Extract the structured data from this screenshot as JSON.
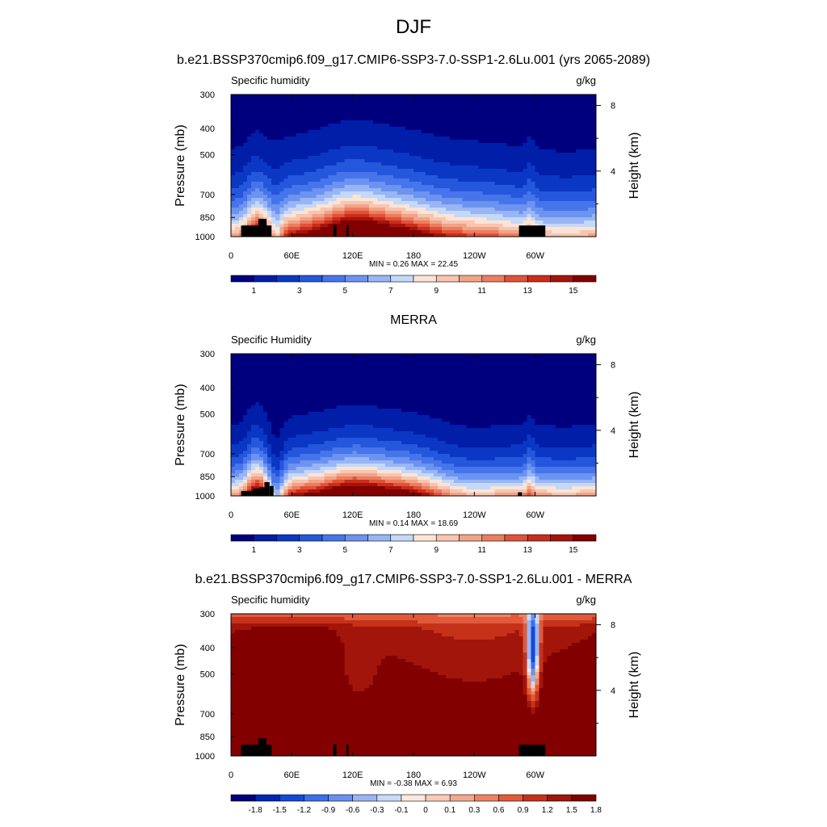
{
  "figure": {
    "title": "DJF"
  },
  "colormaps": {
    "abs": [
      "#00007f",
      "#001ea8",
      "#0a38c4",
      "#2557dd",
      "#4675eb",
      "#6c93f0",
      "#98b5f4",
      "#c4d8f8",
      "#fbe4d6",
      "#f7c5b0",
      "#f2a387",
      "#ec7d5f",
      "#e0523a",
      "#cb2d1b",
      "#a5140b",
      "#820000"
    ],
    "diff": [
      "#00007f",
      "#0027b3",
      "#124ad6",
      "#3a6fe8",
      "#6890ef",
      "#9ab4f4",
      "#c9daf8",
      "#fde8dc",
      "#f9ccb6",
      "#f3a98d",
      "#ec8363",
      "#e05a3b",
      "#c63119",
      "#a1150a",
      "#820000"
    ]
  },
  "chart_data": [
    {
      "type": "heatmap",
      "title": "b.e21.BSSP370cmip6.f09_g17.CMIP6-SSP3-7.0-SSP1-2.6Lu.001 (yrs 2065-2089)",
      "left_label": "Specific humidity",
      "right_label": "g/kg",
      "ylabel": "Pressure (mb)",
      "ylabel_right": "Height (km)",
      "x_ticks": [
        "0",
        "60E",
        "120E",
        "180",
        "120W",
        "60W"
      ],
      "x_tick_lon": [
        0,
        60,
        120,
        180,
        240,
        300
      ],
      "xlim": [
        0,
        360
      ],
      "y_ticks": [
        "300",
        "400",
        "500",
        "700",
        "850",
        "1000"
      ],
      "y_tick_values": [
        300,
        400,
        500,
        700,
        850,
        1000
      ],
      "ylim": [
        300,
        1000
      ],
      "y_scale": "log",
      "right_ticks": [
        "8",
        "4"
      ],
      "right_tick_values": [
        8,
        4
      ],
      "stats": "MIN =   0.26  MAX =   22.45",
      "colorbar_labels": [
        "1",
        "3",
        "5",
        "7",
        "9",
        "11",
        "13",
        "15"
      ],
      "colormap": "abs",
      "field": "model"
    },
    {
      "type": "heatmap",
      "title": "MERRA",
      "left_label": "Specific Humidity",
      "right_label": "g/kg",
      "ylabel": "Pressure (mb)",
      "ylabel_right": "Height (km)",
      "x_ticks": [
        "0",
        "60E",
        "120E",
        "180",
        "120W",
        "60W"
      ],
      "x_tick_lon": [
        0,
        60,
        120,
        180,
        240,
        300
      ],
      "xlim": [
        0,
        360
      ],
      "y_ticks": [
        "300",
        "400",
        "500",
        "700",
        "850",
        "1000"
      ],
      "y_tick_values": [
        300,
        400,
        500,
        700,
        850,
        1000
      ],
      "ylim": [
        300,
        1000
      ],
      "y_scale": "log",
      "right_ticks": [
        "8",
        "4"
      ],
      "right_tick_values": [
        8,
        4
      ],
      "stats": "MIN =   0.14  MAX =   18.69",
      "colorbar_labels": [
        "1",
        "3",
        "5",
        "7",
        "9",
        "11",
        "13",
        "15"
      ],
      "colormap": "abs",
      "field": "obs"
    },
    {
      "type": "heatmap",
      "title": "b.e21.BSSP370cmip6.f09_g17.CMIP6-SSP3-7.0-SSP1-2.6Lu.001 - MERRA",
      "left_label": "Specific humidity",
      "right_label": "g/kg",
      "ylabel": "Pressure (mb)",
      "ylabel_right": "Height (km)",
      "x_ticks": [
        "0",
        "60E",
        "120E",
        "180",
        "120W",
        "60W"
      ],
      "x_tick_lon": [
        0,
        60,
        120,
        180,
        240,
        300
      ],
      "xlim": [
        0,
        360
      ],
      "y_ticks": [
        "300",
        "400",
        "500",
        "700",
        "850",
        "1000"
      ],
      "y_tick_values": [
        300,
        400,
        500,
        700,
        850,
        1000
      ],
      "ylim": [
        300,
        1000
      ],
      "y_scale": "log",
      "right_ticks": [
        "8",
        "4"
      ],
      "right_tick_values": [
        8,
        4
      ],
      "stats": "MIN =  -0.38  MAX =   6.93",
      "colorbar_labels": [
        "-1.8",
        "-1.5",
        "-1.2",
        "-0.9",
        "-0.6",
        "-0.3",
        "-0.1",
        "0",
        "0.1",
        "0.3",
        "0.6",
        "0.9",
        "1.2",
        "1.5",
        "1.8"
      ],
      "colormap": "diff",
      "field": "diff"
    }
  ]
}
